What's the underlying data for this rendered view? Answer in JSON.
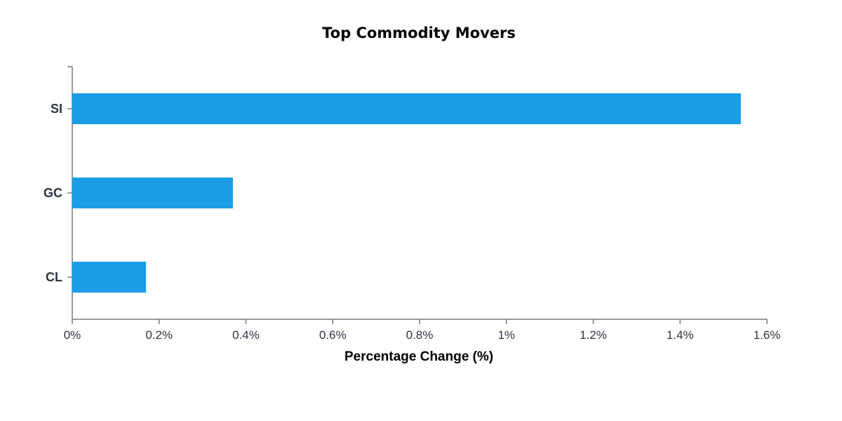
{
  "chart_data": {
    "type": "bar",
    "orientation": "horizontal",
    "title": "Top Commodity Movers",
    "xlabel": "Percentage Change (%)",
    "ylabel": "",
    "categories": [
      "SI",
      "GC",
      "CL"
    ],
    "values": [
      1.54,
      0.37,
      0.17
    ],
    "xlim": [
      0,
      1.6
    ],
    "x_ticks": [
      0,
      0.2,
      0.4,
      0.6,
      0.8,
      1,
      1.2,
      1.4,
      1.6
    ],
    "x_tick_labels": [
      "0%",
      "0.2%",
      "0.4%",
      "0.6%",
      "0.8%",
      "1%",
      "1.2%",
      "1.4%",
      "1.6%"
    ],
    "bar_color": "#1a9de6",
    "grid": false,
    "legend": "none"
  }
}
